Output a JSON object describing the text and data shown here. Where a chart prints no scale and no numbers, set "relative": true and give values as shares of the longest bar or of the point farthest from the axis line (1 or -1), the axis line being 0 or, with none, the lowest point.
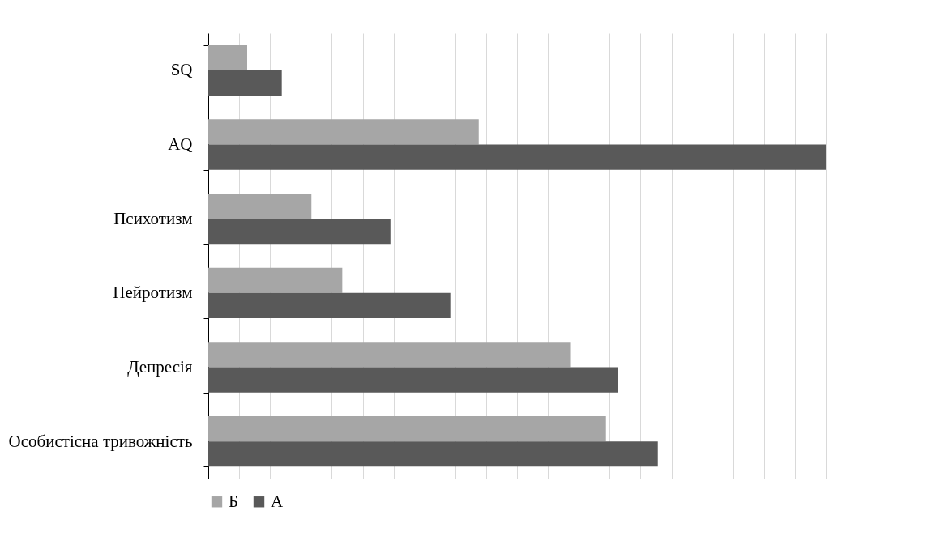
{
  "chart_data": {
    "type": "bar",
    "orientation": "horizontal",
    "relative": true,
    "grid": "x",
    "legend": "bottom",
    "categories": [
      "SQ",
      "AQ",
      "Психотизм",
      "Нейротизм",
      "Депресія",
      "Особистісна тривожність"
    ],
    "series": [
      {
        "name": "Б",
        "color": "#a6a6a6",
        "values": [
          0.063,
          0.438,
          0.167,
          0.217,
          0.586,
          0.644
        ]
      },
      {
        "name": "А",
        "color": "#595959",
        "values": [
          0.119,
          1,
          0.295,
          0.392,
          0.663,
          0.728
        ]
      }
    ]
  }
}
